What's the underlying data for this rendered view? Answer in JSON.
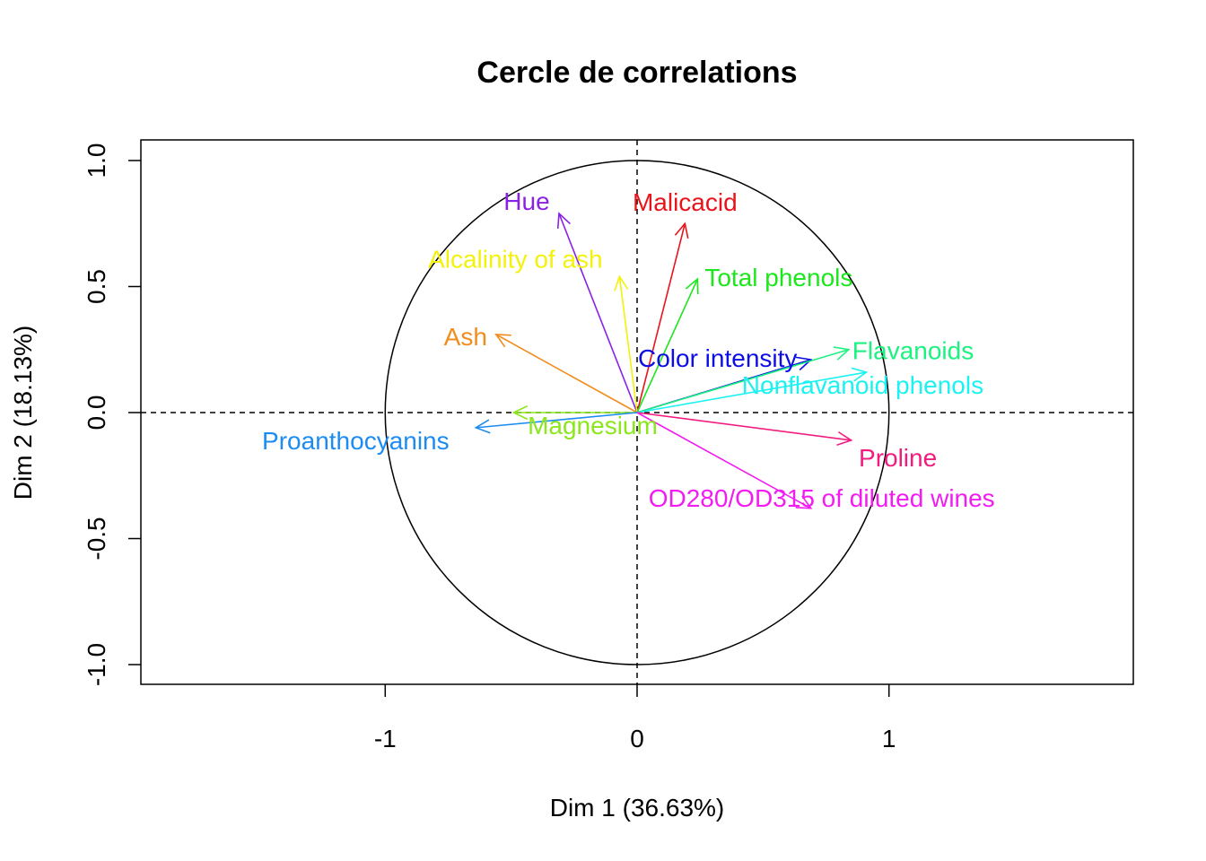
{
  "chart_data": {
    "type": "scatter",
    "subtype": "pca-correlation-circle",
    "title": "Cercle de correlations",
    "xlabel": "Dim 1 (36.63%)",
    "ylabel": "Dim 2 (18.13%)",
    "xlim": [
      -1.97,
      1.97
    ],
    "ylim": [
      -1.08,
      1.08
    ],
    "xticks": [
      -1,
      0,
      1
    ],
    "xtick_labels": [
      "-1",
      "0",
      "1"
    ],
    "yticks": [
      -1.0,
      -0.5,
      0.0,
      0.5,
      1.0
    ],
    "ytick_labels": [
      "-1.0",
      "-0.5",
      "0.0",
      "0.5",
      "1.0"
    ],
    "unit_circle": true,
    "reference_lines": "dashed lines at x = 0 and y = 0",
    "grid": false,
    "legend": "none",
    "series": [
      {
        "name": "Malicacid",
        "x": 0.19,
        "y": 0.75,
        "color": "#e8141b"
      },
      {
        "name": "Hue",
        "x": -0.31,
        "y": 0.79,
        "color": "#8b21e6"
      },
      {
        "name": "Alcalinity of ash",
        "x": -0.07,
        "y": 0.54,
        "color": "#f2f20d"
      },
      {
        "name": "Total phenols",
        "x": 0.24,
        "y": 0.53,
        "color": "#1ce61c"
      },
      {
        "name": "Ash",
        "x": -0.56,
        "y": 0.31,
        "color": "#f28c1c"
      },
      {
        "name": "Color intensity",
        "x": 0.69,
        "y": 0.21,
        "color": "#0d0de6"
      },
      {
        "name": "Flavanoids",
        "x": 0.84,
        "y": 0.25,
        "color": "#1cf280"
      },
      {
        "name": "Nonflavanoid phenols",
        "x": 0.91,
        "y": 0.16,
        "color": "#1cf2f2"
      },
      {
        "name": "Magnesium",
        "x": -0.49,
        "y": 0.0,
        "color": "#8ce61c"
      },
      {
        "name": "Proanthocyanins",
        "x": -0.64,
        "y": -0.06,
        "color": "#1c8cf2"
      },
      {
        "name": "Proline",
        "x": 0.85,
        "y": -0.11,
        "color": "#f21c80"
      },
      {
        "name": "OD280/OD315 of diluted wines",
        "x": 0.69,
        "y": -0.38,
        "color": "#f21cf2"
      }
    ]
  }
}
